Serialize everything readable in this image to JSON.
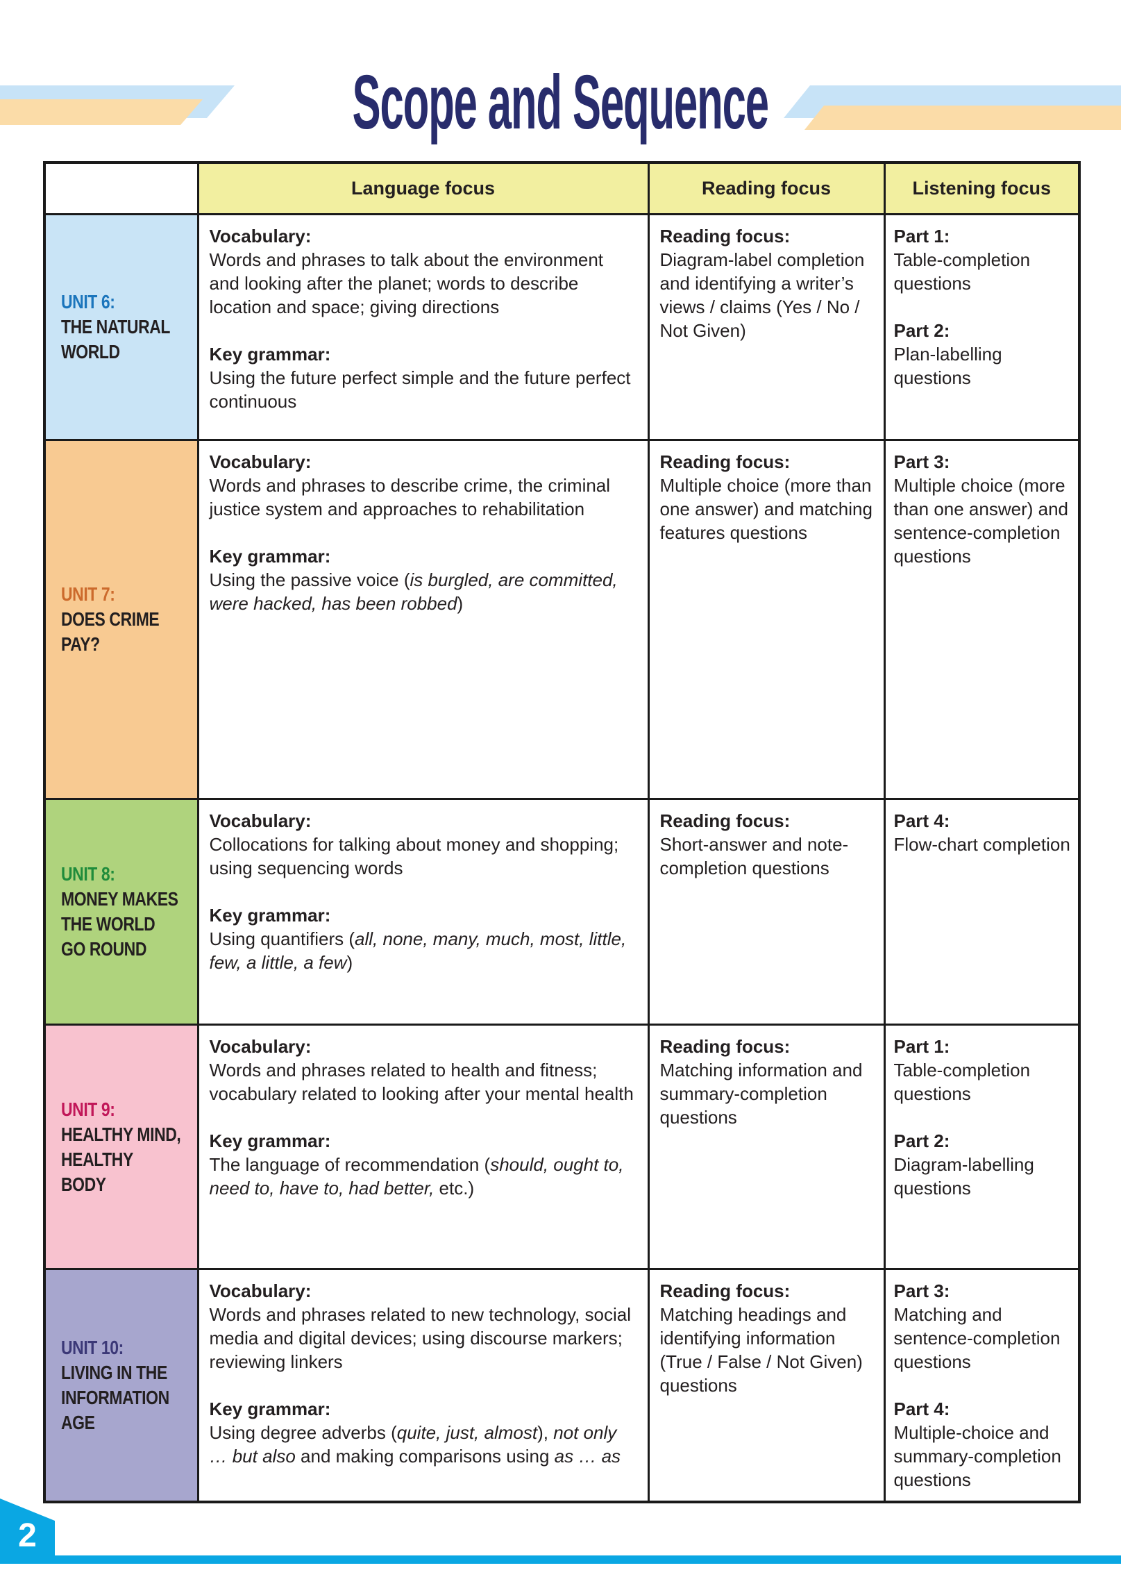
{
  "page": {
    "title": "Scope and Sequence",
    "page_number": "2"
  },
  "colors": {
    "title_navy": "#282c6c",
    "cyan": "#0aa7e3",
    "header_bg": "#f2efa0",
    "deco_blue": "#c7e3f7",
    "deco_peach": "#fbdca8",
    "border": "#1a1a1a",
    "body_text": "#231f20"
  },
  "table": {
    "headers": {
      "language": "Language focus",
      "reading": "Reading focus",
      "listening": "Listening focus"
    },
    "rows": [
      {
        "unit_label": "UNIT 6:",
        "unit_title": "THE NATURAL WORLD",
        "bg": "#c9e4f6",
        "label_color": "#1b75bc",
        "vocabulary_label": "Vocabulary:",
        "vocabulary": "Words and phrases to talk about the environment and looking after the planet; words to describe location and space; giving directions",
        "key_grammar_label": "Key grammar:",
        "key_grammar": [
          {
            "text": "Using the future perfect simple and the future perfect continuous",
            "italic": false
          }
        ],
        "reading_label": "Reading focus:",
        "reading": "Diagram-label completion and identifying a writer’s views / claims (Yes / No / Not Given)",
        "listening": [
          {
            "label": "Part 1:",
            "text": "Table-completion questions"
          },
          {
            "label": "Part 2:",
            "text": "Plan-labelling questions"
          }
        ]
      },
      {
        "unit_label": "UNIT 7:",
        "unit_title": "DOES CRIME PAY?",
        "bg": "#f8ca92",
        "label_color": "#cc6a2c",
        "vocabulary_label": "Vocabulary:",
        "vocabulary": "Words and phrases to describe crime, the criminal justice system and approaches to rehabilitation",
        "key_grammar_label": "Key grammar:",
        "key_grammar": [
          {
            "text": "Using the passive voice (",
            "italic": false
          },
          {
            "text": "is burgled, are committed, were hacked, has been robbed",
            "italic": true
          },
          {
            "text": ")",
            "italic": false
          }
        ],
        "reading_label": "Reading focus:",
        "reading": "Multiple choice (more than one answer) and matching features questions",
        "listening": [
          {
            "label": "Part 3:",
            "text": "Multiple choice (more than one answer) and sentence-completion questions"
          }
        ]
      },
      {
        "unit_label": "UNIT 8:",
        "unit_title": "MONEY MAKES THE WORLD GO ROUND",
        "bg": "#afd37d",
        "label_color": "#1f8c3b",
        "vocabulary_label": "Vocabulary:",
        "vocabulary": "Collocations for talking about money and shopping; using sequencing words",
        "key_grammar_label": "Key grammar:",
        "key_grammar": [
          {
            "text": "Using quantifiers (",
            "italic": false
          },
          {
            "text": "all, none, many, much, most, little, few, a little, a few",
            "italic": true
          },
          {
            "text": ")",
            "italic": false
          }
        ],
        "reading_label": "Reading focus:",
        "reading": "Short-answer and note-completion questions",
        "listening": [
          {
            "label": "Part 4:",
            "text": "Flow-chart completion"
          }
        ]
      },
      {
        "unit_label": "UNIT 9:",
        "unit_title": "HEALTHY MIND, HEALTHY BODY",
        "bg": "#f8c2cf",
        "label_color": "#c11759",
        "vocabulary_label": "Vocabulary:",
        "vocabulary": "Words and phrases related to health and fitness; vocabulary related to looking after your mental health",
        "key_grammar_label": "Key grammar:",
        "key_grammar": [
          {
            "text": "The language of recommendation (",
            "italic": false
          },
          {
            "text": "should, ought to, need to, have to, had better,",
            "italic": true
          },
          {
            "text": " etc.)",
            "italic": false
          }
        ],
        "reading_label": "Reading focus:",
        "reading": "Matching information and summary-completion questions",
        "listening": [
          {
            "label": "Part 1:",
            "text": "Table-completion questions"
          },
          {
            "label": "Part 2:",
            "text": "Diagram-labelling questions"
          }
        ]
      },
      {
        "unit_label": "UNIT 10:",
        "unit_title": "LIVING IN THE INFORMATION AGE",
        "bg": "#a7a6ce",
        "label_color": "#3b3877",
        "vocabulary_label": "Vocabulary:",
        "vocabulary": "Words and phrases related to new technology, social media and digital devices; using discourse markers; reviewing linkers",
        "key_grammar_label": "Key grammar:",
        "key_grammar": [
          {
            "text": "Using degree adverbs (",
            "italic": false
          },
          {
            "text": "quite, just, almost",
            "italic": true
          },
          {
            "text": "), ",
            "italic": false
          },
          {
            "text": "not only … but also",
            "italic": true
          },
          {
            "text": " and making comparisons using ",
            "italic": false
          },
          {
            "text": "as … as",
            "italic": true
          }
        ],
        "reading_label": "Reading focus:",
        "reading": "Matching headings and identifying information (True / False / Not Given) questions",
        "listening": [
          {
            "label": "Part 3:",
            "text": "Matching and sentence-completion questions"
          },
          {
            "label": "Part 4:",
            "text": "Multiple-choice and summary-completion questions"
          }
        ]
      }
    ]
  }
}
